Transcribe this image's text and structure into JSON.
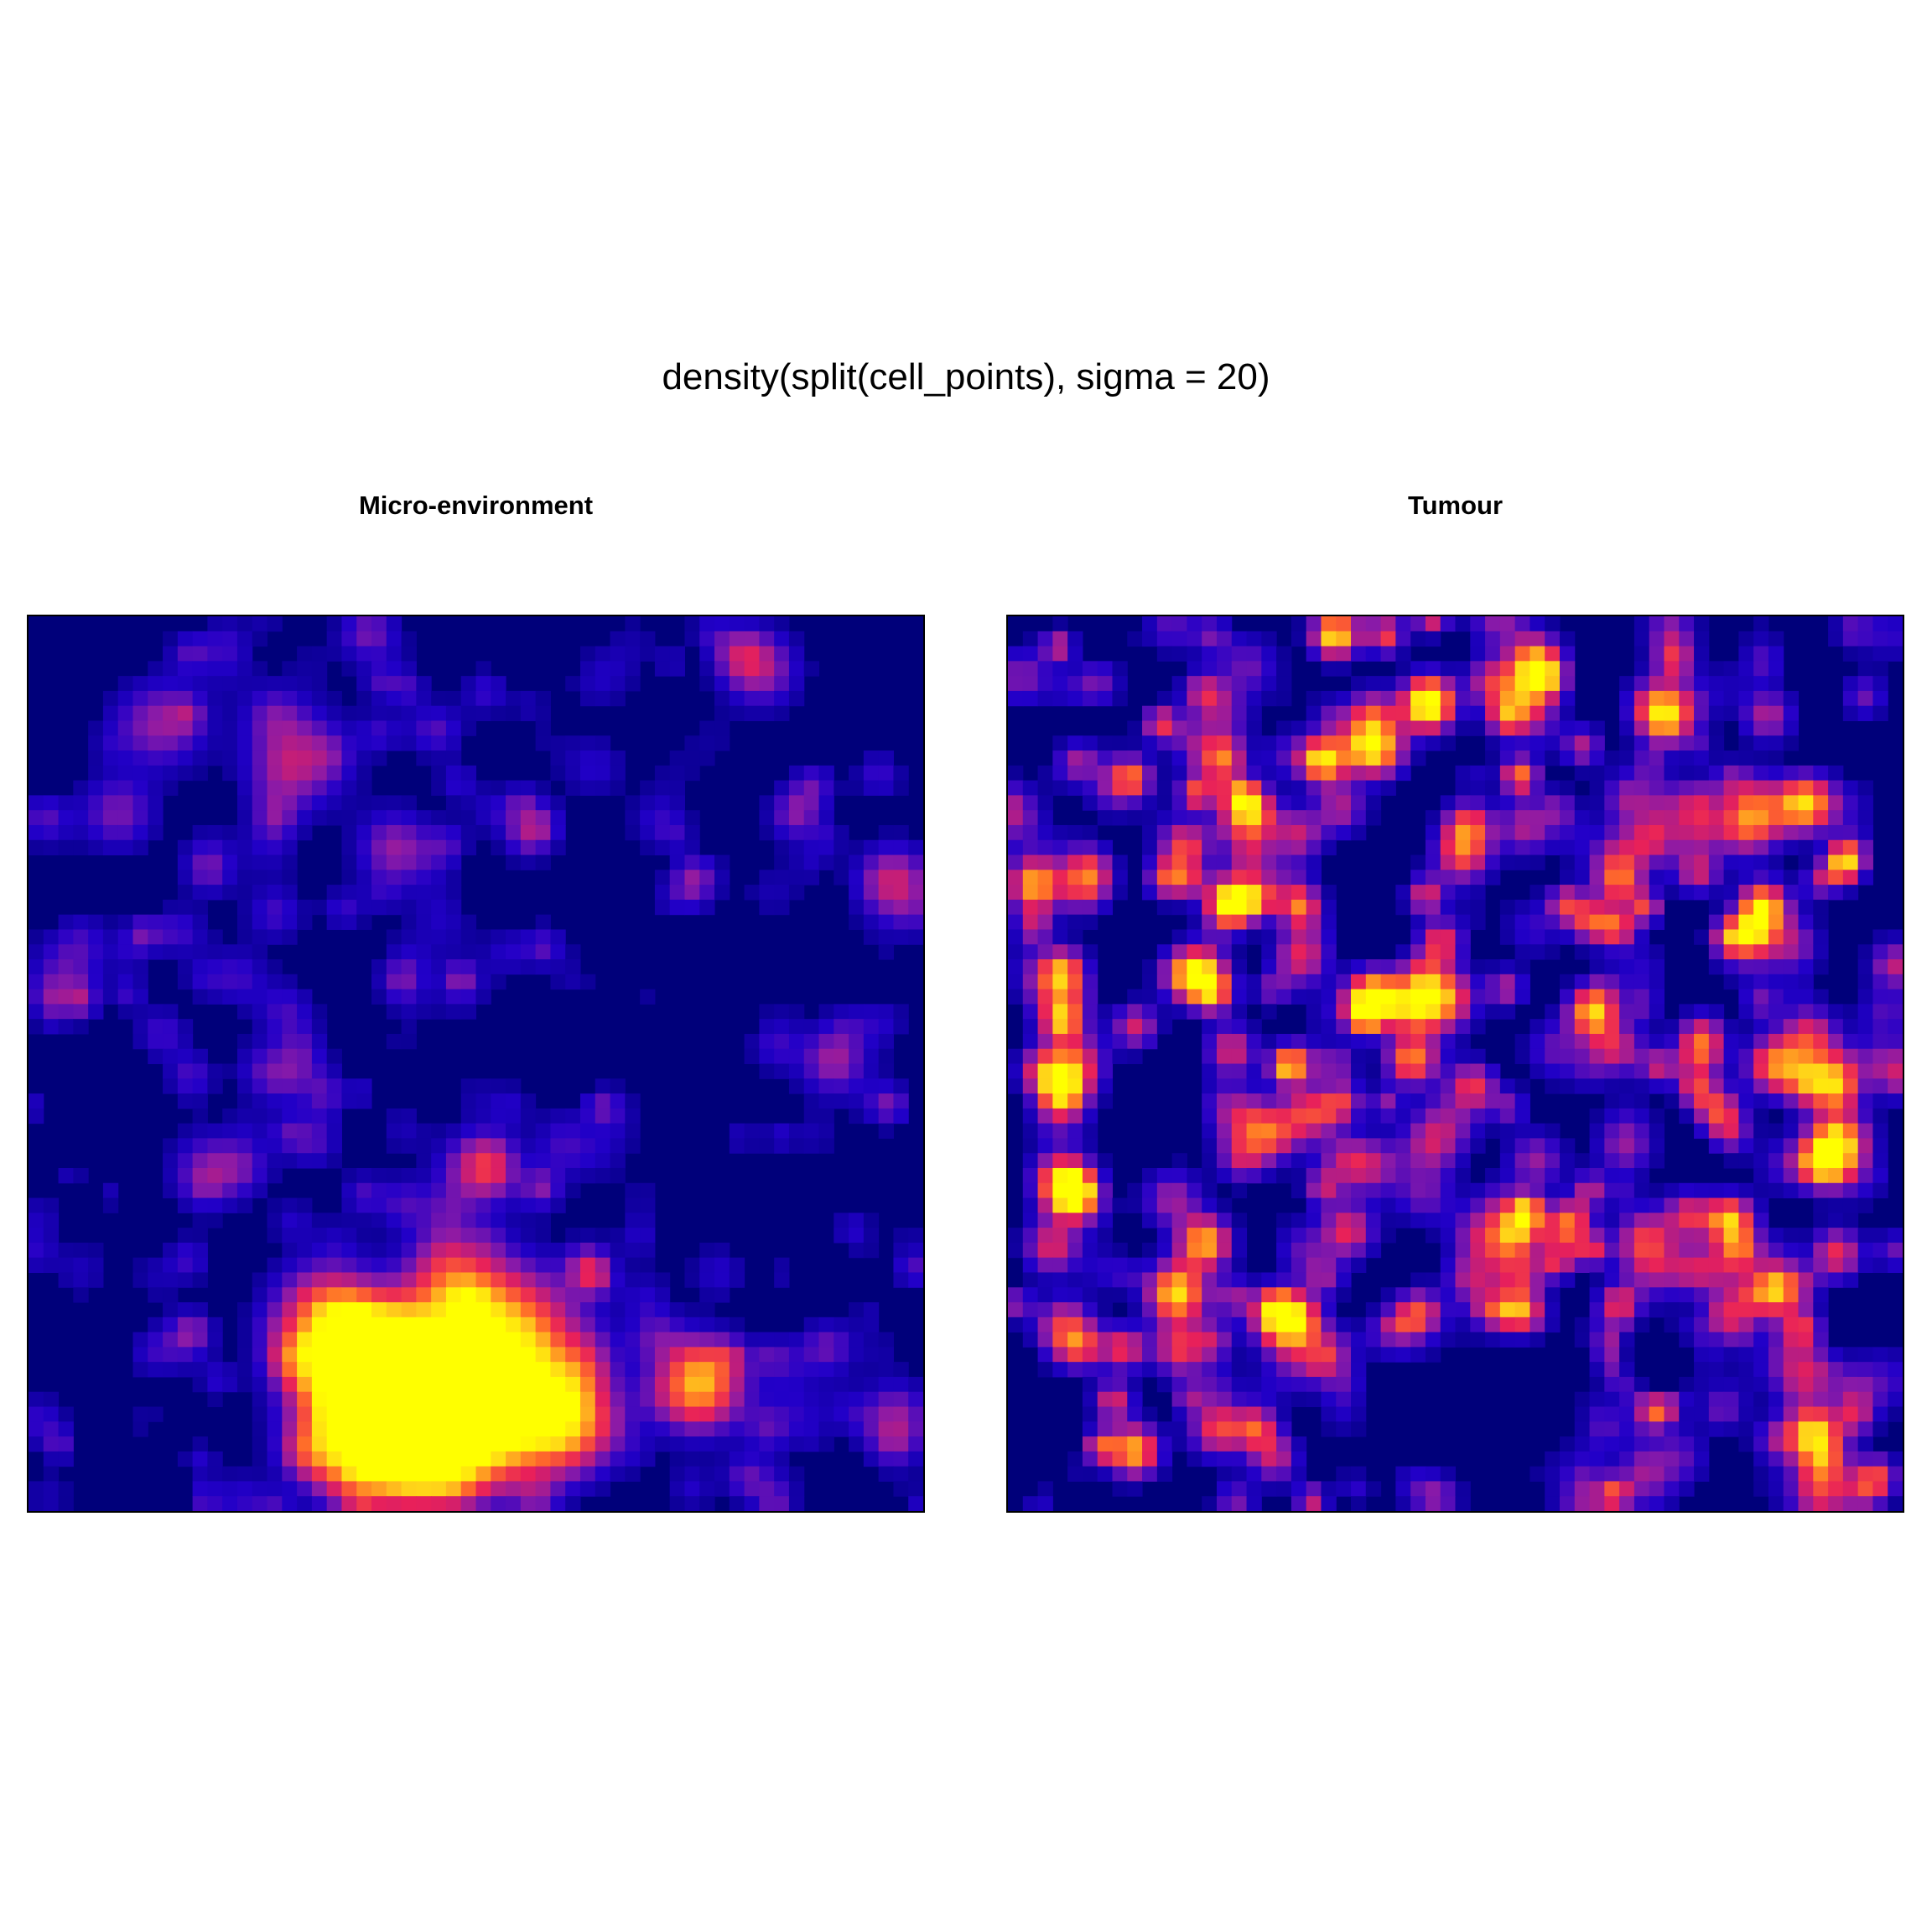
{
  "title": "density(split(cell_points), sigma = 20)",
  "colors": {
    "background": "#ffffff",
    "low": "#00007a",
    "mid": "#e8205a",
    "high": "#ffff00"
  },
  "chart_data": [
    {
      "type": "heatmap",
      "title": "Micro-environment",
      "grid": false,
      "legend": "none",
      "colormap": [
        "#00007a",
        "#2200c8",
        "#8a1aa8",
        "#e8205a",
        "#ff6a2a",
        "#ffd21a",
        "#ffff00"
      ],
      "hotspots": [
        {
          "x": 0.46,
          "y": 0.1,
          "value": 1.0,
          "spread": 0.05
        },
        {
          "x": 0.4,
          "y": 0.08,
          "value": 0.95,
          "spread": 0.05
        },
        {
          "x": 0.52,
          "y": 0.12,
          "value": 0.9,
          "spread": 0.05
        },
        {
          "x": 0.42,
          "y": 0.16,
          "value": 0.85,
          "spread": 0.05
        },
        {
          "x": 0.6,
          "y": 0.1,
          "value": 0.75,
          "spread": 0.04
        },
        {
          "x": 0.37,
          "y": 0.14,
          "value": 0.8,
          "spread": 0.05
        },
        {
          "x": 0.55,
          "y": 0.2,
          "value": 0.6,
          "spread": 0.05
        },
        {
          "x": 0.75,
          "y": 0.14,
          "value": 0.75,
          "spread": 0.035
        },
        {
          "x": 0.33,
          "y": 0.22,
          "value": 0.55,
          "spread": 0.04
        },
        {
          "x": 0.48,
          "y": 0.25,
          "value": 0.5,
          "spread": 0.04
        },
        {
          "x": 0.5,
          "y": 0.38,
          "value": 0.4,
          "spread": 0.03
        },
        {
          "x": 0.15,
          "y": 0.88,
          "value": 0.35,
          "spread": 0.035
        },
        {
          "x": 0.3,
          "y": 0.84,
          "value": 0.4,
          "spread": 0.04
        },
        {
          "x": 0.1,
          "y": 0.78,
          "value": 0.3,
          "spread": 0.03
        },
        {
          "x": 0.97,
          "y": 0.7,
          "value": 0.4,
          "spread": 0.03
        },
        {
          "x": 0.82,
          "y": 0.94,
          "value": 0.35,
          "spread": 0.03
        },
        {
          "x": 0.9,
          "y": 0.5,
          "value": 0.25,
          "spread": 0.03
        },
        {
          "x": 0.2,
          "y": 0.38,
          "value": 0.3,
          "spread": 0.03
        },
        {
          "x": 0.41,
          "y": 0.74,
          "value": 0.35,
          "spread": 0.03
        },
        {
          "x": 0.04,
          "y": 0.6,
          "value": 0.25,
          "spread": 0.03
        },
        {
          "x": 0.97,
          "y": 0.1,
          "value": 0.3,
          "spread": 0.03
        }
      ],
      "background_level": 0.22
    },
    {
      "type": "heatmap",
      "title": "Tumour",
      "grid": false,
      "legend": "none",
      "colormap": [
        "#00007a",
        "#2200c8",
        "#8a1aa8",
        "#e8205a",
        "#ff6a2a",
        "#ffd21a",
        "#ffff00"
      ],
      "hotspots": [
        {
          "x": 0.47,
          "y": 0.9,
          "value": 1.0,
          "spread": 0.02
        },
        {
          "x": 0.27,
          "y": 0.78,
          "value": 0.85,
          "spread": 0.02
        },
        {
          "x": 0.03,
          "y": 0.7,
          "value": 0.8,
          "spread": 0.02
        },
        {
          "x": 0.41,
          "y": 0.57,
          "value": 0.8,
          "spread": 0.02
        },
        {
          "x": 0.22,
          "y": 0.3,
          "value": 0.8,
          "spread": 0.02
        },
        {
          "x": 0.86,
          "y": 0.25,
          "value": 0.8,
          "spread": 0.02
        },
        {
          "x": 0.57,
          "y": 0.22,
          "value": 0.8,
          "spread": 0.02
        },
        {
          "x": 0.9,
          "y": 0.09,
          "value": 0.75,
          "spread": 0.02
        },
        {
          "x": 0.07,
          "y": 0.36,
          "value": 0.7,
          "spread": 0.02
        },
        {
          "x": 0.2,
          "y": 0.6,
          "value": 0.7,
          "spread": 0.02
        }
      ],
      "empty_regions": [
        {
          "x": 0.52,
          "y": 0.11,
          "rx": 0.2,
          "ry": 0.11
        },
        {
          "x": 0.73,
          "y": 0.17,
          "rx": 0.06,
          "ry": 0.05
        }
      ],
      "background_level": 0.55
    }
  ]
}
